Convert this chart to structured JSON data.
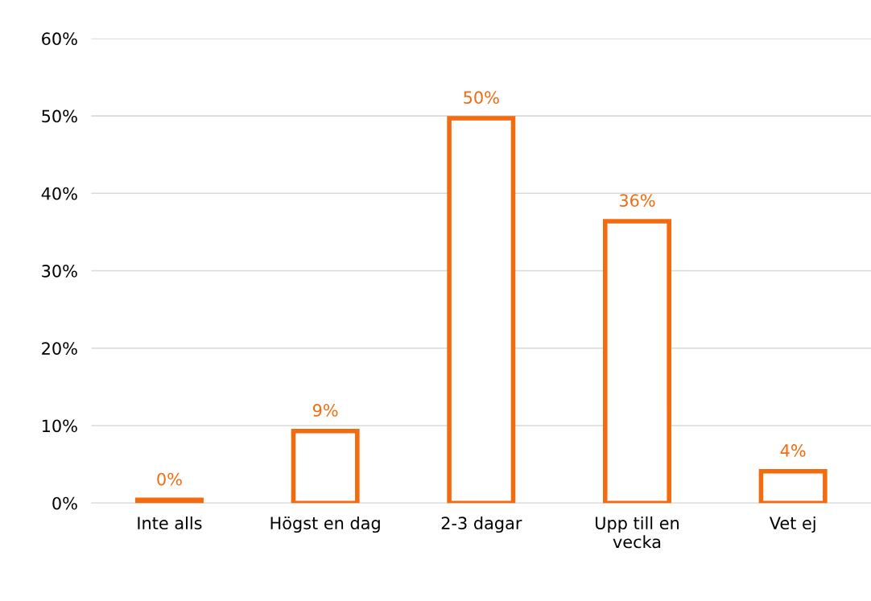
{
  "chart_data": {
    "type": "bar",
    "categories": [
      "Inte alls",
      "Högst en dag",
      "2-3 dagar",
      "Upp till en\nvecka",
      "Vet ej"
    ],
    "values": [
      0.4,
      9.3,
      49.7,
      36.4,
      4.1
    ],
    "value_labels": [
      "0%",
      "9%",
      "50%",
      "36%",
      "4%"
    ],
    "color": "#f26b0f",
    "ylim": [
      0,
      60
    ],
    "yticks": [
      {
        "value": 0,
        "label": "0%"
      },
      {
        "value": 10,
        "label": "10%"
      },
      {
        "value": 20,
        "label": "20%"
      },
      {
        "value": 30,
        "label": "30%"
      },
      {
        "value": 40,
        "label": "40%"
      },
      {
        "value": 50,
        "label": "50%"
      },
      {
        "value": 60,
        "label": "60%"
      }
    ],
    "grid": "y"
  }
}
